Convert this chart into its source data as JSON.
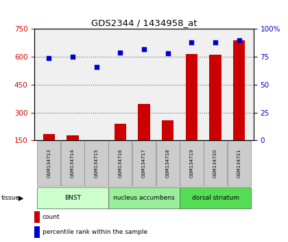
{
  "title": "GDS2344 / 1434958_at",
  "samples": [
    "GSM134713",
    "GSM134714",
    "GSM134715",
    "GSM134716",
    "GSM134717",
    "GSM134718",
    "GSM134719",
    "GSM134720",
    "GSM134721"
  ],
  "counts": [
    185,
    178,
    152,
    238,
    348,
    258,
    615,
    612,
    688
  ],
  "percentiles": [
    74,
    75,
    66,
    79,
    82,
    78,
    88,
    88,
    90
  ],
  "ylim_left": [
    150,
    750
  ],
  "ylim_right": [
    0,
    100
  ],
  "yticks_left": [
    150,
    300,
    450,
    600,
    750
  ],
  "yticks_right": [
    0,
    25,
    50,
    75,
    100
  ],
  "bar_color": "#cc0000",
  "dot_color": "#0000cc",
  "tissue_groups": [
    {
      "label": "BNST",
      "start": 0,
      "end": 3,
      "color": "#ccffcc"
    },
    {
      "label": "nucleus accumbens",
      "start": 3,
      "end": 6,
      "color": "#99ee99"
    },
    {
      "label": "dorsal striatum",
      "start": 6,
      "end": 9,
      "color": "#55dd55"
    }
  ],
  "xlabel_color": "#cc0000",
  "ylabel_right_color": "#0000cc",
  "bg_color": "#ffffff",
  "grid_color": "#000000"
}
